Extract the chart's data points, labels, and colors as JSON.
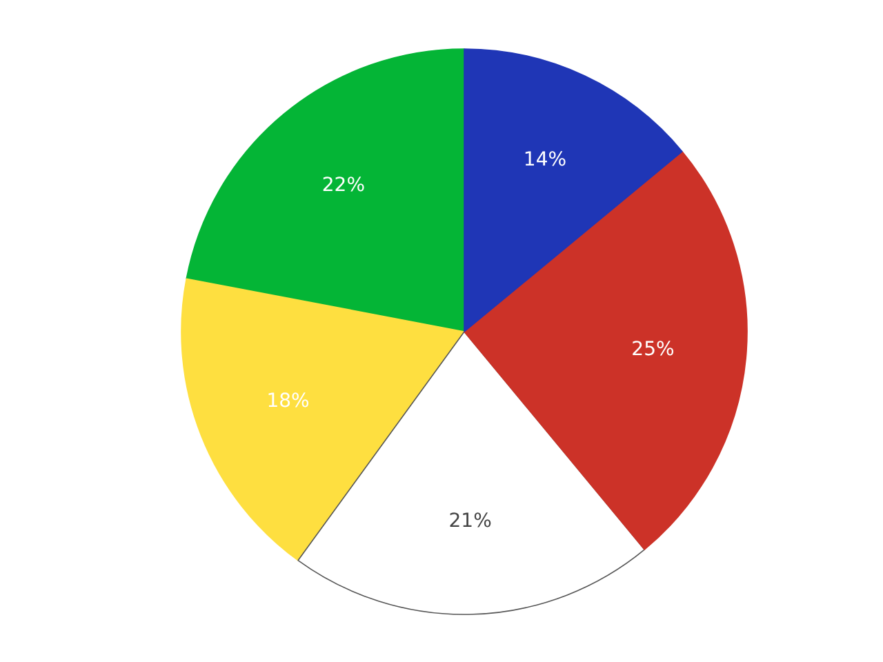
{
  "chart_data": {
    "type": "pie",
    "categories": [
      null,
      null,
      null,
      null,
      null
    ],
    "values": [
      14,
      25,
      21,
      18,
      22
    ],
    "colors": [
      "#1f36b6",
      "#cc3228",
      "#ffffff",
      "#fedf40",
      "#04b536"
    ],
    "value_labels": [
      "14%",
      "25%",
      "21%",
      "18%",
      "22%"
    ]
  }
}
